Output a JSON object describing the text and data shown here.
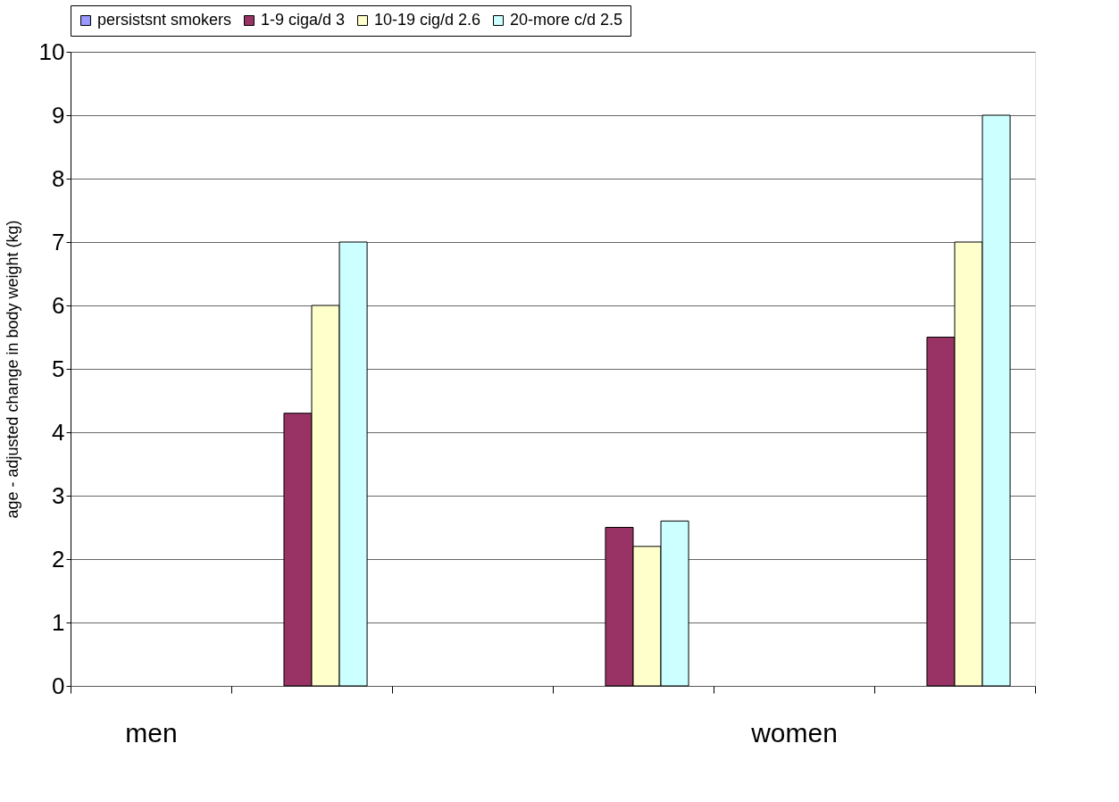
{
  "chart_data": {
    "type": "bar",
    "ylabel": "age - adjusted change in body weight (kg)",
    "categories": [
      "men",
      null,
      null,
      null,
      "women",
      null
    ],
    "series": [
      {
        "name": "persistsnt smokers",
        "color": "#9999ff",
        "values": [
          null,
          null,
          null,
          null,
          null,
          null
        ]
      },
      {
        "name": "1-9 ciga/d 3",
        "color": "#993366",
        "values": [
          null,
          4.3,
          null,
          2.5,
          null,
          5.5
        ]
      },
      {
        "name": "10-19 cig/d 2.6",
        "color": "#ffffcc",
        "values": [
          null,
          6,
          null,
          2.2,
          null,
          7
        ]
      },
      {
        "name": "20-more c/d 2.5",
        "color": "#ccffff",
        "values": [
          null,
          7,
          null,
          2.6,
          null,
          9
        ]
      }
    ],
    "ylim": [
      0,
      10
    ],
    "yticks": [
      0,
      1,
      2,
      3,
      4,
      5,
      6,
      7,
      8,
      9,
      10
    ],
    "grid": "y",
    "legend": "top"
  }
}
